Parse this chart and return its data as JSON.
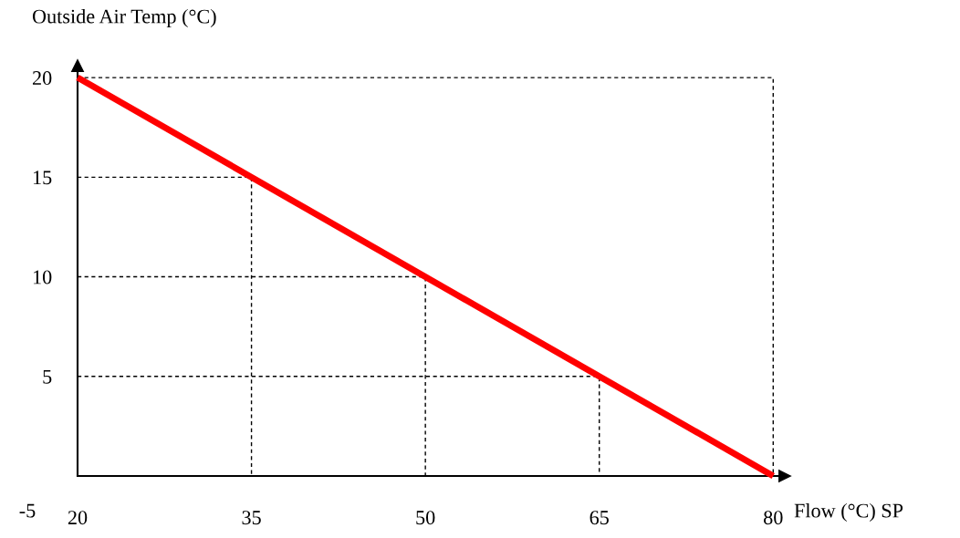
{
  "chart_data": {
    "type": "line",
    "xlabel": "Flow (°C) SP",
    "ylabel": "Outside Air Temp (°C)",
    "xlim": [
      20,
      81
    ],
    "ylim": [
      0,
      20.6
    ],
    "xticks": [
      20,
      35,
      50,
      65,
      80
    ],
    "yticks": [
      5,
      10,
      15,
      20
    ],
    "grid": false,
    "marker": "none",
    "annotations": [
      "-5"
    ],
    "series": [
      {
        "color": "#000000",
        "line_style": "dashed",
        "x": [
          20,
          80,
          80
        ],
        "values": [
          20,
          20,
          0
        ]
      },
      {
        "color": "#000000",
        "line_style": "dashed",
        "x": [
          20,
          35,
          35
        ],
        "values": [
          15,
          15,
          0
        ]
      },
      {
        "color": "#000000",
        "line_style": "dashed",
        "x": [
          20,
          50,
          50
        ],
        "values": [
          10,
          10,
          0
        ]
      },
      {
        "color": "#000000",
        "line_style": "dashed",
        "x": [
          20,
          65,
          65
        ],
        "values": [
          5,
          5,
          0
        ]
      },
      {
        "color": "#ff0000",
        "line_style": "solid",
        "x": [
          20,
          80
        ],
        "values": [
          20,
          0
        ]
      }
    ]
  }
}
